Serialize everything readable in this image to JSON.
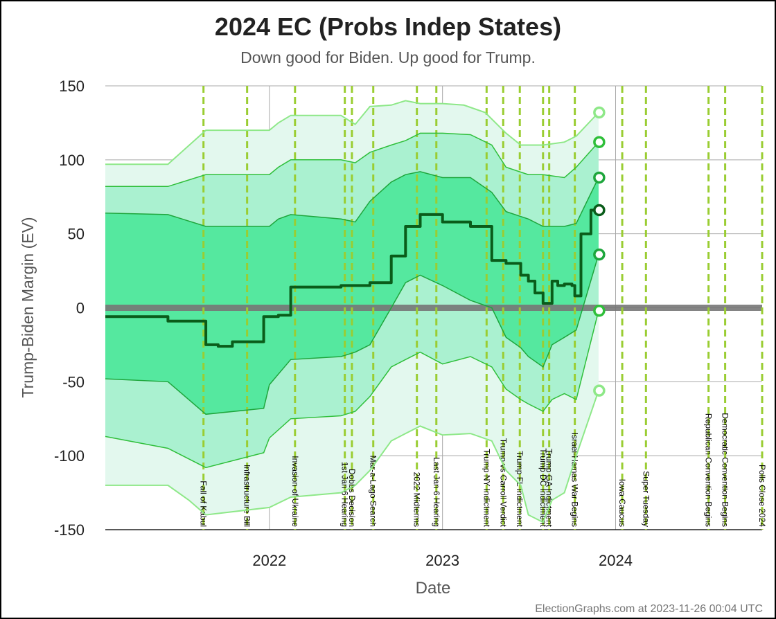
{
  "colors": {
    "band_outer": "#e3f8ee",
    "band_2": "#aaf1d0",
    "band_3": "#55e89f",
    "line_outer": "#8ee888",
    "line_mid": "#2fbf3a",
    "line_inner": "#1ea63c",
    "center": "#0a5c1a",
    "event_line": "#9acd32",
    "zero_line": "#777777"
  },
  "chart_data": {
    "type": "area",
    "title": "2024 EC (Probs Indep States)",
    "subtitle": "Down good for Biden. Up good for Trump.",
    "xlabel": "Date",
    "ylabel": "Trump-Biden Margin (EV)",
    "ylim": [
      -150,
      150
    ],
    "xlim": [
      "2021-01-20",
      "2024-11-05"
    ],
    "yticks": [
      150,
      100,
      50,
      0,
      -50,
      -100,
      -150
    ],
    "xticks": [
      "2022",
      "2023",
      "2024"
    ],
    "xtick_dates": [
      "2022-01-01",
      "2023-01-01",
      "2024-01-01"
    ],
    "grid": true,
    "series": [
      {
        "role": "upper_outer",
        "x": [
          "2021-01-20",
          "2021-06-01",
          "2021-08-20",
          "2022-01-01",
          "2022-01-20",
          "2022-02-15",
          "2022-06-01",
          "2022-07-01",
          "2022-08-01",
          "2022-09-15",
          "2022-10-15",
          "2022-11-15",
          "2023-01-01",
          "2023-02-15",
          "2023-04-01",
          "2023-05-15",
          "2023-06-15",
          "2023-08-01",
          "2023-09-15",
          "2023-10-10",
          "2023-11-26"
        ],
        "values": [
          97,
          97,
          120,
          120,
          125,
          130,
          130,
          124,
          136,
          137,
          140,
          138,
          138,
          137,
          132,
          118,
          110,
          110,
          112,
          116,
          132
        ]
      },
      {
        "role": "upper_mid",
        "x": [
          "2021-01-20",
          "2021-06-01",
          "2021-08-20",
          "2022-01-01",
          "2022-01-20",
          "2022-02-15",
          "2022-06-01",
          "2022-07-01",
          "2022-08-01",
          "2022-09-15",
          "2022-10-15",
          "2022-11-15",
          "2023-01-01",
          "2023-03-01",
          "2023-04-15",
          "2023-05-15",
          "2023-07-01",
          "2023-08-01",
          "2023-09-15",
          "2023-10-10",
          "2023-11-26"
        ],
        "values": [
          82,
          82,
          90,
          90,
          95,
          100,
          100,
          98,
          105,
          110,
          113,
          118,
          118,
          117,
          110,
          95,
          90,
          90,
          88,
          95,
          112
        ]
      },
      {
        "role": "upper_inner",
        "x": [
          "2021-01-20",
          "2021-06-01",
          "2021-08-20",
          "2022-01-01",
          "2022-01-20",
          "2022-02-15",
          "2022-06-01",
          "2022-07-01",
          "2022-08-01",
          "2022-09-15",
          "2022-10-15",
          "2022-11-15",
          "2023-01-01",
          "2023-03-01",
          "2023-04-15",
          "2023-05-15",
          "2023-07-01",
          "2023-08-01",
          "2023-09-15",
          "2023-10-10",
          "2023-11-26"
        ],
        "values": [
          64,
          63,
          55,
          55,
          60,
          63,
          60,
          58,
          72,
          85,
          90,
          92,
          88,
          88,
          78,
          65,
          60,
          55,
          55,
          57,
          88
        ]
      },
      {
        "role": "center",
        "x": [
          "2021-01-20",
          "2021-06-01",
          "2021-08-20",
          "2021-09-15",
          "2021-10-15",
          "2021-12-20",
          "2022-01-01",
          "2022-01-20",
          "2022-02-15",
          "2022-06-01",
          "2022-07-01",
          "2022-08-01",
          "2022-09-15",
          "2022-10-15",
          "2022-11-15",
          "2023-01-01",
          "2023-03-01",
          "2023-04-15",
          "2023-05-15",
          "2023-06-15",
          "2023-07-01",
          "2023-07-15",
          "2023-08-01",
          "2023-08-20",
          "2023-09-01",
          "2023-09-15",
          "2023-10-01",
          "2023-10-07",
          "2023-10-20",
          "2023-11-10",
          "2023-11-26"
        ],
        "values": [
          -6,
          -9,
          -25,
          -26,
          -23,
          -6,
          -6,
          -5,
          14,
          15,
          15,
          17,
          35,
          55,
          63,
          58,
          55,
          32,
          30,
          22,
          18,
          10,
          3,
          18,
          15,
          16,
          15,
          8,
          50,
          66,
          66
        ]
      },
      {
        "role": "lower_inner",
        "x": [
          "2021-01-20",
          "2021-06-01",
          "2021-08-20",
          "2021-12-20",
          "2022-01-01",
          "2022-02-15",
          "2022-06-01",
          "2022-07-01",
          "2022-08-01",
          "2022-09-15",
          "2022-10-15",
          "2022-11-15",
          "2023-01-01",
          "2023-03-01",
          "2023-04-15",
          "2023-05-15",
          "2023-06-15",
          "2023-07-01",
          "2023-08-01",
          "2023-08-20",
          "2023-09-15",
          "2023-10-10",
          "2023-11-26"
        ],
        "values": [
          -48,
          -50,
          -72,
          -68,
          -52,
          -35,
          -33,
          -30,
          -25,
          0,
          17,
          22,
          15,
          5,
          0,
          -20,
          -27,
          -33,
          -40,
          -25,
          -20,
          -15,
          36
        ]
      },
      {
        "role": "lower_mid",
        "x": [
          "2021-01-20",
          "2021-06-01",
          "2021-08-20",
          "2021-12-20",
          "2022-01-01",
          "2022-02-15",
          "2022-06-01",
          "2022-07-01",
          "2022-08-01",
          "2022-09-15",
          "2022-10-15",
          "2022-11-15",
          "2023-01-01",
          "2023-03-01",
          "2023-04-15",
          "2023-05-15",
          "2023-06-15",
          "2023-07-01",
          "2023-08-01",
          "2023-08-20",
          "2023-09-15",
          "2023-10-10",
          "2023-11-26"
        ],
        "values": [
          -87,
          -95,
          -108,
          -98,
          -88,
          -75,
          -73,
          -70,
          -60,
          -40,
          -35,
          -30,
          -38,
          -33,
          -40,
          -55,
          -62,
          -65,
          -70,
          -62,
          -58,
          -62,
          -2
        ]
      },
      {
        "role": "lower_outer",
        "x": [
          "2021-01-20",
          "2021-06-01",
          "2021-07-15",
          "2021-08-20",
          "2022-01-01",
          "2022-02-15",
          "2022-06-01",
          "2022-07-01",
          "2022-08-01",
          "2022-09-15",
          "2022-10-15",
          "2022-11-15",
          "2023-01-01",
          "2023-03-01",
          "2023-04-15",
          "2023-05-15",
          "2023-06-15",
          "2023-07-01",
          "2023-08-01",
          "2023-08-20",
          "2023-09-15",
          "2023-10-10",
          "2023-11-26"
        ],
        "values": [
          -120,
          -120,
          -130,
          -140,
          -135,
          -128,
          -125,
          -120,
          -110,
          -90,
          -85,
          -80,
          -86,
          -85,
          -90,
          -110,
          -120,
          -140,
          -145,
          -130,
          -125,
          -100,
          -56
        ]
      }
    ],
    "endpoints": [
      {
        "role": "upper_outer",
        "date": "2023-11-26",
        "value": 132
      },
      {
        "role": "upper_mid",
        "date": "2023-11-26",
        "value": 112
      },
      {
        "role": "upper_inner",
        "date": "2023-11-26",
        "value": 88
      },
      {
        "role": "center",
        "date": "2023-11-26",
        "value": 66
      },
      {
        "role": "lower_inner",
        "date": "2023-11-26",
        "value": 36
      },
      {
        "role": "lower_mid",
        "date": "2023-11-26",
        "value": -2
      },
      {
        "role": "lower_outer",
        "date": "2023-11-26",
        "value": -56
      }
    ],
    "events": [
      {
        "label": "Fall of Kabul",
        "date": "2021-08-15"
      },
      {
        "label": "Infrastructure Bill",
        "date": "2021-11-15"
      },
      {
        "label": "Invasion of Ukraine",
        "date": "2022-02-24"
      },
      {
        "label": "1st Jan 6 Hearing",
        "date": "2022-06-09"
      },
      {
        "label": "Dobbs Decision",
        "date": "2022-06-24"
      },
      {
        "label": "Mar-a-Lago Search",
        "date": "2022-08-08"
      },
      {
        "label": "2022 Midterms",
        "date": "2022-11-08"
      },
      {
        "label": "Last Jan 6 Hearing",
        "date": "2022-12-19"
      },
      {
        "label": "Trump NY Indictment",
        "date": "2023-04-04"
      },
      {
        "label": "Trump vs Carroll Verdict",
        "date": "2023-05-09"
      },
      {
        "label": "Trump FL Indictment",
        "date": "2023-06-13"
      },
      {
        "label": "Trump DC Indictment",
        "date": "2023-08-01"
      },
      {
        "label": "Trump GA Indictment",
        "date": "2023-08-14"
      },
      {
        "label": "Israel-Hamas War Begins",
        "date": "2023-10-07"
      },
      {
        "label": "Iowa Caucus",
        "date": "2024-01-15"
      },
      {
        "label": "Super Tuesday",
        "date": "2024-03-05"
      },
      {
        "label": "Republican Convention Begins",
        "date": "2024-07-15"
      },
      {
        "label": "Democratic Convention Begins",
        "date": "2024-08-19"
      },
      {
        "label": "Polls Close 2024",
        "date": "2024-11-05"
      }
    ]
  },
  "footer": {
    "credit": "ElectionGraphs.com at 2023-11-26 00:04 UTC"
  }
}
